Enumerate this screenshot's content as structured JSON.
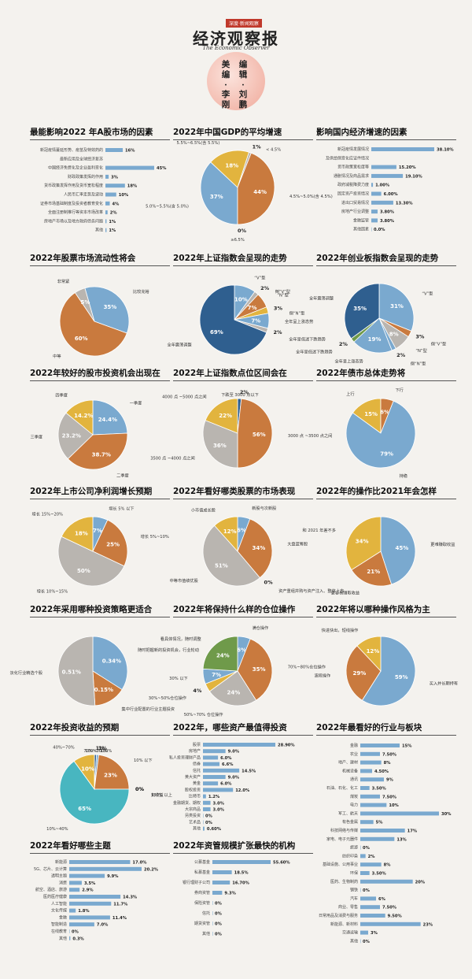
{
  "header": {
    "tag": "深度·新闻观察",
    "title": "经济观察报",
    "subtitle": "The Economic Observer",
    "credit_cols": [
      "美编",
      "·",
      "李刚",
      "编辑",
      "·",
      "刘鹏"
    ]
  },
  "palette": {
    "blue": "#7aa9cf",
    "orange": "#c97a3e",
    "gold": "#e2b43e",
    "gray": "#b9b5b0",
    "navy": "#2f5f8f",
    "green": "#6f9a4a",
    "teal": "#48b6c0",
    "bar": "#7aa9cf"
  },
  "chart_data": [
    {
      "id": "c1",
      "type": "bar",
      "title": "最能影响2022 年A股市场的因素",
      "categories": [
        "新冠疫情蔓延形势、疫苗及特效药的",
        "最新应用及全球经济复苏",
        "中国经济免费化及企业盈利变化",
        "财政政策发挥的作用",
        "货币政策发挥作用及货币宽松程度",
        "人民币汇率走势及波动",
        "证券市场基础制度及投资者教育变化",
        "全面注册制推行等资本市场改革",
        "房地产市场以及地方政府债务问题",
        "其他"
      ],
      "values": [
        16,
        null,
        45,
        3,
        18,
        10,
        4,
        2,
        1,
        1
      ],
      "value_labels": [
        "16%",
        "",
        "45%",
        "3%",
        "18%",
        "10%",
        "4%",
        "2%",
        "1%",
        "1%"
      ],
      "max": 45
    },
    {
      "id": "c2",
      "type": "pie",
      "title": "2022年中国GDP的平均增速",
      "slices": [
        {
          "name": "5.0%~5.5%(含 5.0%)",
          "value": 37,
          "label": "37%"
        },
        {
          "name": "5.5%~6.5%(含 5.5%)",
          "value": 18,
          "label": "18%"
        },
        {
          "name": "< 4.5%",
          "value": 1,
          "label": "1%"
        },
        {
          "name": "4.5%~5.0%(含 4.5%)",
          "value": 44,
          "label": "44%"
        },
        {
          "name": "≥6.5%",
          "value": 0,
          "label": "0%"
        }
      ]
    },
    {
      "id": "c3",
      "type": "bar",
      "title": "影响国内经济增速的因素",
      "categories": [
        "新冠疫情发展情况",
        "及供给侧变化应证件情况",
        "货币政策宽松度等",
        "通胀情况及商品需求",
        "政府减税降费力度",
        "固定资产投资情况",
        "进出口贸易情况",
        "房地产行业调整",
        "金融监管",
        "其他因素"
      ],
      "values": [
        38.1,
        null,
        15.2,
        19.1,
        1,
        6,
        13.3,
        3.8,
        3.8,
        0
      ],
      "value_labels": [
        "38.10%",
        "",
        "15.20%",
        "19.10%",
        "1.00%",
        "6.00%",
        "13.30%",
        "3.80%",
        "3.80%",
        "0.0%"
      ],
      "max": 38.1
    },
    {
      "id": "c4",
      "type": "pie",
      "title": "2022年股票市场流动性将会",
      "slices": [
        {
          "name": "比较充裕",
          "value": 35,
          "label": "35%"
        },
        {
          "name": "中等",
          "value": 60,
          "label": "60%"
        },
        {
          "name": "非常紧",
          "value": 5,
          "label": "5%"
        }
      ]
    },
    {
      "id": "c5",
      "type": "pie",
      "title": "2022年上证指数会呈现的走势",
      "slices": [
        {
          "name": "“V”型",
          "value": 10,
          "label": "10%"
        },
        {
          "name": "倒“V”型",
          "value": 2,
          "label": "2%"
        },
        {
          "name": "“N”型",
          "value": 7,
          "label": "7%"
        },
        {
          "name": "倒“N”型",
          "value": 3,
          "label": "3%"
        },
        {
          "name": "全年呈上涨态势",
          "value": 7,
          "label": "7%"
        },
        {
          "name": "全年呈低迷下跌趋势",
          "value": 2,
          "label": "2%"
        },
        {
          "name": "全年震荡调整",
          "value": 69,
          "label": "69%"
        }
      ]
    },
    {
      "id": "c6",
      "type": "pie",
      "title": "2022年创业板指数会呈现的走势",
      "slices": [
        {
          "name": "“V”型",
          "value": 31,
          "label": "31%"
        },
        {
          "name": "倒“V”型",
          "value": 3,
          "label": "3%"
        },
        {
          "name": "“N”型",
          "value": 8,
          "label": "8%"
        },
        {
          "name": "倒“N”型",
          "value": 2,
          "label": "2%"
        },
        {
          "name": "全年呈上涨态势",
          "value": 19,
          "label": "19%"
        },
        {
          "name": "全年呈低迷下跌趋势",
          "value": 2,
          "label": "2%"
        },
        {
          "name": "全年震荡调整",
          "value": 35,
          "label": "35%"
        }
      ]
    },
    {
      "id": "c7",
      "type": "pie",
      "title": "2022年较好的股市投资机会出现在",
      "slices": [
        {
          "name": "一季度",
          "value": 24.4,
          "label": "24.4%"
        },
        {
          "name": "二季度",
          "value": 38.7,
          "label": "38.7%"
        },
        {
          "name": "三季度",
          "value": 23.2,
          "label": "23.2%"
        },
        {
          "name": "四季度",
          "value": 14.2,
          "label": "14.2%"
        }
      ]
    },
    {
      "id": "c8",
      "type": "pie",
      "title": "2022年上证指数点位区间会在",
      "slices": [
        {
          "name": "下跌至 3000 点以下",
          "value": 2,
          "label": "2%"
        },
        {
          "name": "3000 点 ~3500 点之间",
          "value": 56,
          "label": "56%"
        },
        {
          "name": "3500 点 ~4000 点之间",
          "value": 36,
          "label": "36%"
        },
        {
          "name": "4000 点 ~5000 点之间",
          "value": 22,
          "label": "22%"
        }
      ]
    },
    {
      "id": "c9",
      "type": "pie",
      "title": "2022年债市总体走势将",
      "slices": [
        {
          "name": "上行",
          "value": 15,
          "label": "15%"
        },
        {
          "name": "下行",
          "value": 6,
          "label": "6%"
        },
        {
          "name": "持稳",
          "value": 79,
          "label": "79%"
        }
      ]
    },
    {
      "id": "c10",
      "type": "pie",
      "title": "2022年上市公司净利润增长预期",
      "slices": [
        {
          "name": "增长 5% 以下",
          "value": 7,
          "label": "7%"
        },
        {
          "name": "增长 5%~10%",
          "value": 25,
          "label": "25%"
        },
        {
          "name": "增长 10%~15%",
          "value": 50,
          "label": "50%"
        },
        {
          "name": "增长 15%~20%",
          "value": 18,
          "label": "18%"
        }
      ]
    },
    {
      "id": "c11",
      "type": "pie",
      "title": "2022年看好哪类股票的市场表现",
      "slices": [
        {
          "name": "新股与次新股",
          "value": 6,
          "label": "6%"
        },
        {
          "name": "大盘蓝筹股",
          "value": 34,
          "label": "34%"
        },
        {
          "name": "资产重组并购与资产注入、整体上市",
          "value": 0,
          "label": "0%"
        },
        {
          "name": "中等市值绩优股",
          "value": 51,
          "label": "51%"
        },
        {
          "name": "小市值成长股",
          "value": 12,
          "label": "12%"
        }
      ]
    },
    {
      "id": "c12",
      "type": "pie",
      "title": "2022年的操作比2021年会怎样",
      "slices": [
        {
          "name": "更难赚取收益",
          "value": 45,
          "label": "45%"
        },
        {
          "name": "更容易赚取收益",
          "value": 21,
          "label": "21%"
        },
        {
          "name": "和 2021 年差不多",
          "value": 34,
          "label": "34%"
        }
      ]
    },
    {
      "id": "c13",
      "type": "pie",
      "title": "2022年采用哪种投资策略更适合",
      "slices": [
        {
          "name": "随时把握新的投资机会，行业轮动",
          "value": 0.34,
          "label": "0.34%"
        },
        {
          "name": "集中行业配置的行业主题投资",
          "value": 0.15,
          "label": "0.15%"
        },
        {
          "name": "淡化行业精选个股",
          "value": 0.51,
          "label": "0.51%"
        }
      ]
    },
    {
      "id": "c14",
      "type": "pie",
      "title": "2022年将保持什么样的仓位操作",
      "slices": [
        {
          "name": "满仓操作",
          "value": 6,
          "label": "6%"
        },
        {
          "name": "70%~80%仓位操作",
          "value": 35,
          "label": "35%"
        },
        {
          "name": "50%~70% 仓位操作",
          "value": 24,
          "label": "24%"
        },
        {
          "name": "30%~50%仓位操作",
          "value": 4,
          "label": "4%"
        },
        {
          "name": "30% 以下",
          "value": 7,
          "label": "7%"
        },
        {
          "name": "看具体情况，随时调整",
          "value": 24,
          "label": "24%"
        }
      ]
    },
    {
      "id": "c15",
      "type": "pie",
      "title": "2022年将以哪种操作风格为主",
      "slices": [
        {
          "name": "买入并长期持有",
          "value": 59,
          "label": "59%"
        },
        {
          "name": "波段操作",
          "value": 29,
          "label": "29%"
        },
        {
          "name": "快进快出，短线操作",
          "value": 12,
          "label": "12%"
        }
      ]
    },
    {
      "id": "c16",
      "type": "pie",
      "title": "2022年投资收益的预期",
      "slices": [
        {
          "name": "70%~100%",
          "value": 1,
          "label": "1%"
        },
        {
          "name": "100%~130%",
          "value": 1,
          "label": "1%"
        },
        {
          "name": "10% 以下",
          "value": 23,
          "label": "23%"
        },
        {
          "name": "负收益",
          "value": 0,
          "label": "0%"
        },
        {
          "name": "130% 以上",
          "value": 0,
          "label": "0%"
        },
        {
          "name": "10%~40%",
          "value": 65,
          "label": "65%"
        },
        {
          "name": "40%~70%",
          "value": 10,
          "label": "10%"
        }
      ]
    },
    {
      "id": "c17",
      "type": "bar",
      "title": "2022年，哪些资产最值得投资",
      "categories": [
        "股票",
        "房地产",
        "私人投资理财产品",
        "债券",
        "信托",
        "黄大资产",
        "黄金",
        "股权投资",
        "比特币",
        "金融期货、期权",
        "大宗商品",
        "另类投资",
        "艺术品",
        "其他"
      ],
      "values": [
        28.9,
        9,
        6,
        6.6,
        14.5,
        9,
        6,
        12,
        1.2,
        3,
        3,
        0,
        0,
        0.6
      ],
      "value_labels": [
        "28.90%",
        "9.0%",
        "6.0%",
        "6.6%",
        "14.5%",
        "9.0%",
        "6.0%",
        "12.0%",
        "1.2%",
        "3.0%",
        "3.0%",
        "0%",
        "0%",
        "0.60%"
      ],
      "max": 28.9
    },
    {
      "id": "c18",
      "type": "bar",
      "title": "2022年最看好的行业与板块",
      "categories": [
        "金融",
        "农业",
        "地产、建材",
        "机械设备",
        "通讯",
        "石油、石化、化工",
        "煤炭",
        "电力",
        "军工、航天",
        "有色金属",
        "科技网络与传媒",
        "家电、电子元器件",
        "旅游",
        "纺织印染",
        "基础设施、公用事业",
        "环保",
        "医药、生物制药",
        "钢铁",
        "汽车",
        "商业、零售",
        "日常用品及消费与服务",
        "新能源、新材料",
        "交通运输",
        "其他"
      ],
      "values": [
        15,
        7.5,
        8,
        4.5,
        9,
        3.5,
        7.5,
        10,
        30,
        5,
        17,
        13,
        0,
        2,
        8,
        3.5,
        20,
        0,
        6,
        7.5,
        9.5,
        23,
        3,
        0
      ],
      "value_labels": [
        "15%",
        "7.50%",
        "8%",
        "4.50%",
        "9%",
        "3.50%",
        "7.50%",
        "10%",
        "30%",
        "5%",
        "17%",
        "13%",
        "0%",
        "2%",
        "8%",
        "3.50%",
        "20%",
        "0%",
        "6%",
        "7.50%",
        "9.50%",
        "23%",
        "3%",
        "0%"
      ],
      "max": 30
    },
    {
      "id": "c19",
      "type": "bar",
      "title": "2022年看好哪些主题",
      "categories": [
        "新能源",
        "5G、芯片、云计算",
        "透明主题",
        "消费",
        "航空、酒店、旅游",
        "医药医疗健康",
        "人工智能",
        "文化传媒",
        "金融",
        "智能制造",
        "在线教育",
        "其他"
      ],
      "values": [
        17,
        20.2,
        9.9,
        3.5,
        2.9,
        14.3,
        11.7,
        1.8,
        11.4,
        7,
        0,
        0.3
      ],
      "value_labels": [
        "17.0%",
        "20.2%",
        "9.9%",
        "3.5%",
        "2.9%",
        "14.3%",
        "11.7%",
        "1.8%",
        "11.4%",
        "7.0%",
        "0%",
        "0.3%"
      ],
      "max": 20.2
    },
    {
      "id": "c20",
      "type": "bar",
      "title": "2022年资管规模扩张最快的机构",
      "categories": [
        "公募基金",
        "私募基金",
        "银行理财子公司",
        "券商资管",
        "保险资管",
        "信托",
        "期货资管",
        "其他"
      ],
      "values": [
        55.6,
        18.5,
        16.7,
        9.3,
        0,
        0,
        0,
        0
      ],
      "value_labels": [
        "55.60%",
        "18.5%",
        "16.70%",
        "9.3%",
        "0%",
        "0%",
        "0%",
        "0%"
      ],
      "max": 55.6
    }
  ]
}
